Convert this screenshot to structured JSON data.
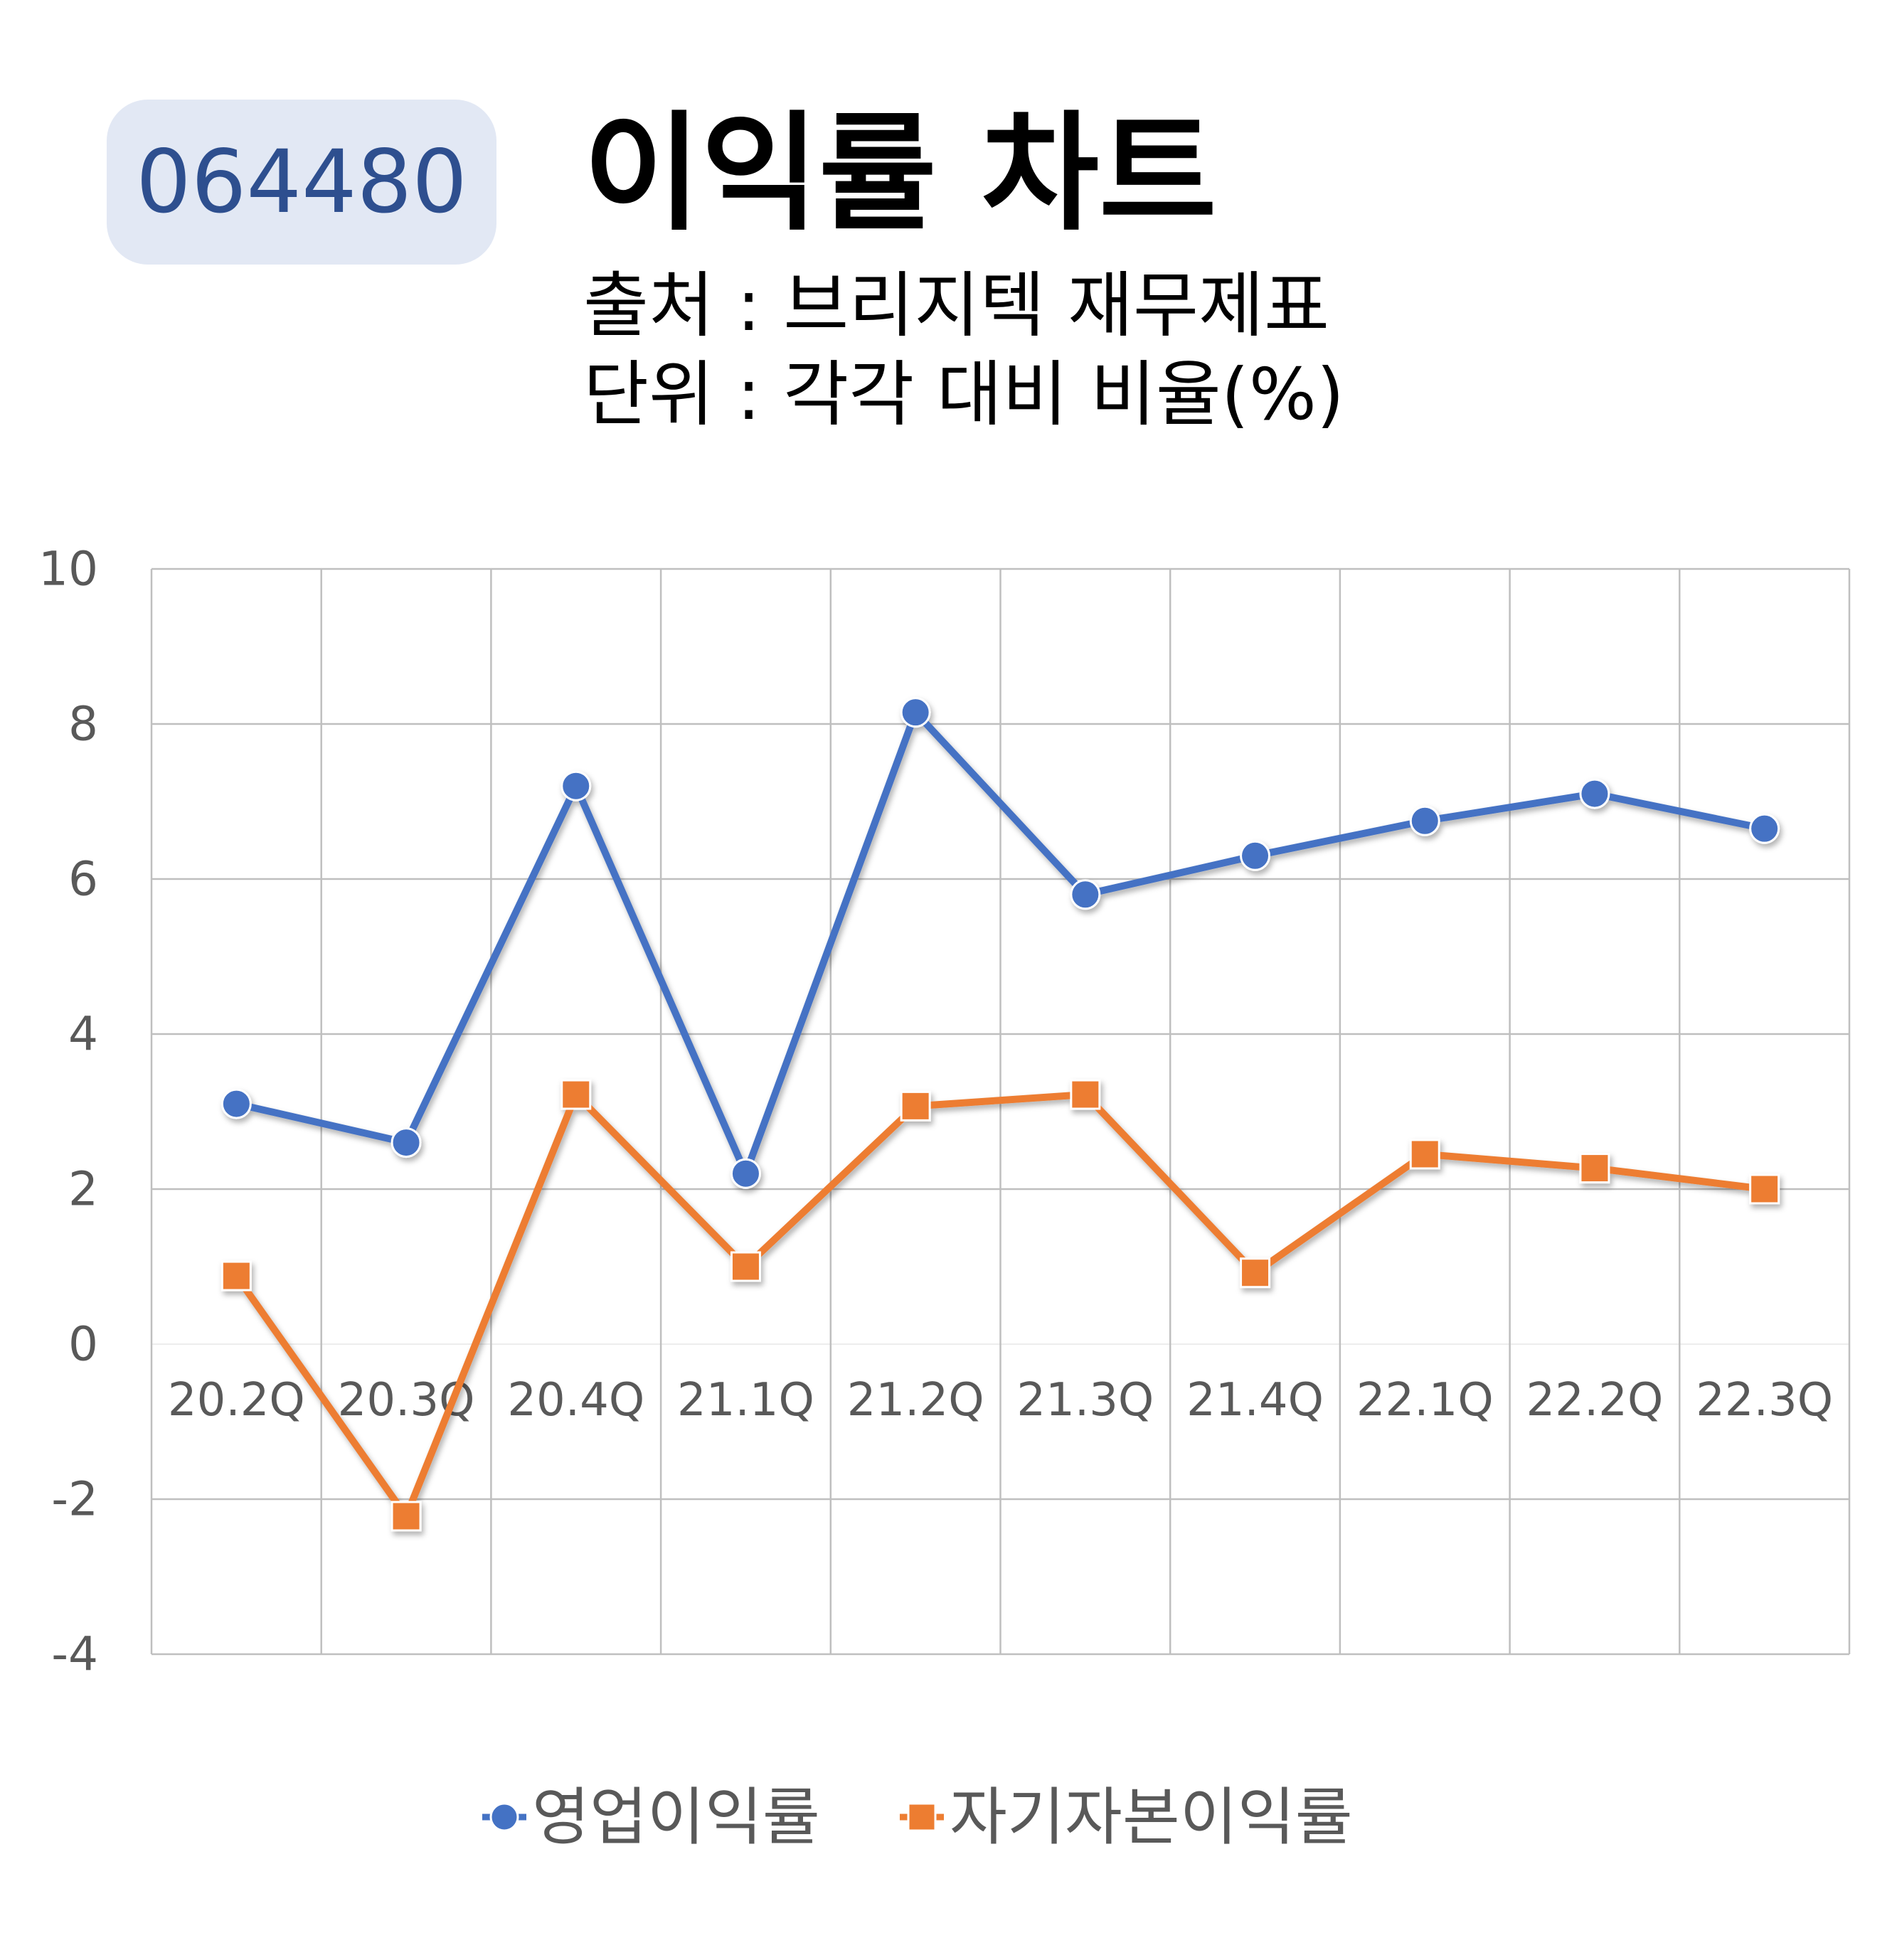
{
  "header": {
    "code": "064480",
    "title": "이익률 차트",
    "source": "출처 : 브리지텍 재무제표",
    "unit": "단위 : 각각 대비 비율(%)"
  },
  "colors": {
    "badge_bg": "#e2e8f4",
    "badge_text": "#2e4f8f",
    "series1": "#4472c4",
    "series2": "#ed7d31",
    "grid": "#bfbfbf",
    "axis_text": "#595959"
  },
  "chart_data": {
    "type": "line",
    "categories": [
      "20.2Q",
      "20.3Q",
      "20.4Q",
      "21.1Q",
      "21.2Q",
      "21.3Q",
      "21.4Q",
      "22.1Q",
      "22.2Q",
      "22.3Q"
    ],
    "ylim": [
      -4,
      10
    ],
    "yticks": [
      -4,
      -2,
      0,
      2,
      4,
      6,
      8,
      10
    ],
    "grid": true,
    "legend_position": "bottom",
    "series": [
      {
        "name": "영업이익률",
        "marker": "circle",
        "color": "#4472c4",
        "values": [
          3.1,
          2.6,
          7.2,
          2.2,
          8.15,
          5.8,
          6.3,
          6.75,
          7.1,
          6.65
        ]
      },
      {
        "name": "자기자본이익률",
        "marker": "square",
        "color": "#ed7d31",
        "values": [
          0.88,
          -2.22,
          3.22,
          1.0,
          3.07,
          3.22,
          0.92,
          2.45,
          2.27,
          2.0
        ]
      }
    ]
  }
}
